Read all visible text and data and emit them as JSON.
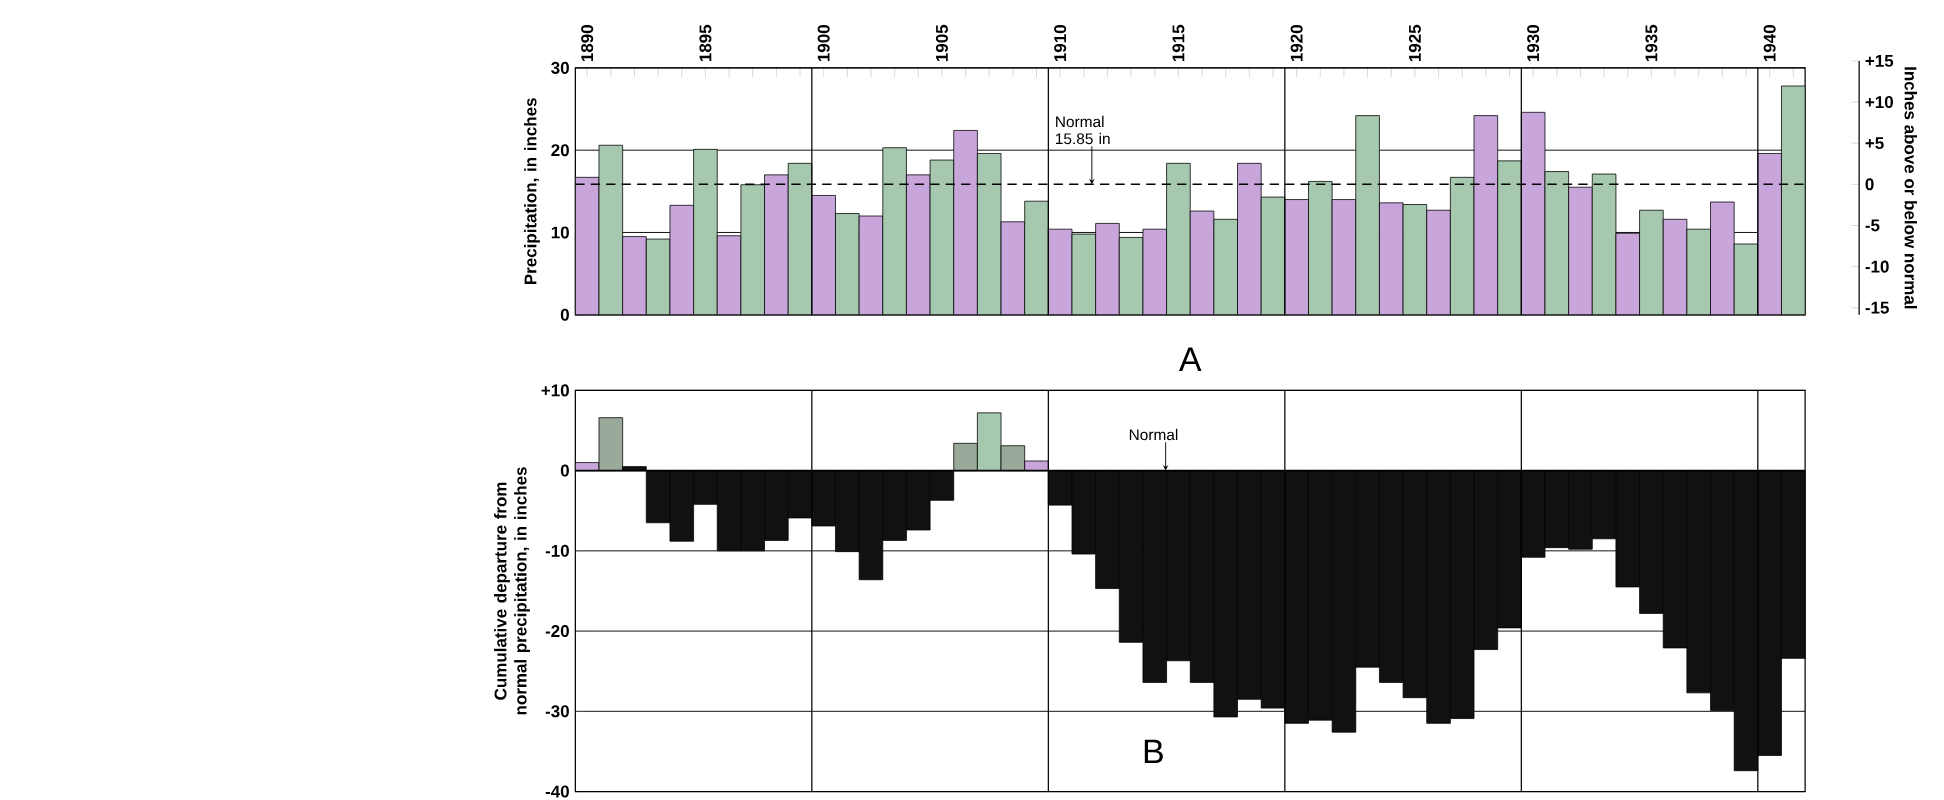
{
  "chart_data": [
    {
      "type": "bar",
      "ylabel": "Precipitation, in inches",
      "y2label": "Inches above or below normal",
      "annotations": [
        "A"
      ],
      "x": [
        1890,
        1891,
        1892,
        1893,
        1894,
        1895,
        1896,
        1897,
        1898,
        1899,
        1900,
        1901,
        1902,
        1903,
        1904,
        1905,
        1906,
        1907,
        1908,
        1909,
        1910,
        1911,
        1912,
        1913,
        1914,
        1915,
        1916,
        1917,
        1918,
        1919,
        1920,
        1921,
        1922,
        1923,
        1924,
        1925,
        1926,
        1927,
        1928,
        1929,
        1930,
        1931,
        1932,
        1933,
        1934,
        1935,
        1936,
        1937,
        1938,
        1939,
        1940,
        1941
      ],
      "values": [
        16.7,
        20.6,
        9.5,
        9.2,
        13.3,
        20.1,
        9.6,
        15.8,
        17.0,
        18.4,
        14.5,
        12.3,
        12.0,
        20.3,
        17.0,
        18.8,
        22.4,
        19.6,
        11.3,
        13.8,
        10.4,
        9.8,
        11.1,
        9.4,
        10.4,
        18.4,
        12.6,
        11.6,
        18.4,
        14.3,
        14.0,
        16.2,
        14.0,
        24.2,
        13.6,
        13.4,
        12.7,
        16.7,
        24.2,
        18.7,
        24.6,
        17.4,
        15.5,
        17.1,
        9.9,
        12.7,
        11.6,
        10.4,
        13.7,
        8.6,
        19.6,
        27.8
      ],
      "colors": [
        "#c8a6dc",
        "#a6c8ae",
        "#c8a6dc",
        "#a6c8ae",
        "#c8a6dc",
        "#a6c8ae",
        "#c8a6dc",
        "#a6c8ae",
        "#c8a6dc",
        "#a6c8ae",
        "#c8a6dc",
        "#a6c8ae",
        "#c8a6dc",
        "#a6c8ae",
        "#c8a6dc",
        "#a6c8ae",
        "#c8a6dc",
        "#a6c8ae",
        "#c8a6dc",
        "#a6c8ae",
        "#c8a6dc",
        "#a6c8ae",
        "#c8a6dc",
        "#a6c8ae",
        "#c8a6dc",
        "#a6c8ae",
        "#c8a6dc",
        "#a6c8ae",
        "#c8a6dc",
        "#a6c8ae",
        "#c8a6dc",
        "#a6c8ae",
        "#c8a6dc",
        "#a6c8ae",
        "#c8a6dc",
        "#a6c8ae",
        "#c8a6dc",
        "#a6c8ae",
        "#c8a6dc",
        "#a6c8ae",
        "#c8a6dc",
        "#a6c8ae",
        "#c8a6dc",
        "#a6c8ae",
        "#c8a6dc",
        "#a6c8ae",
        "#c8a6dc",
        "#a6c8ae",
        "#c8a6dc",
        "#a6c8ae",
        "#c8a6dc",
        "#a6c8ae"
      ],
      "xlim": [
        1889.5,
        1941.5
      ],
      "xticks": [
        1890,
        {
          "value": 1891,
          "label": null
        },
        {
          "value": 1892,
          "label": null
        },
        {
          "value": 1893,
          "label": null
        },
        {
          "value": 1894,
          "label": null
        },
        1895,
        {
          "value": 1896,
          "label": null
        },
        {
          "value": 1897,
          "label": null
        },
        {
          "value": 1898,
          "label": null
        },
        {
          "value": 1899,
          "label": null
        },
        1900,
        {
          "value": 1901,
          "label": null
        },
        {
          "value": 1902,
          "label": null
        },
        {
          "value": 1903,
          "label": null
        },
        {
          "value": 1904,
          "label": null
        },
        1905,
        {
          "value": 1906,
          "label": null
        },
        {
          "value": 1907,
          "label": null
        },
        {
          "value": 1908,
          "label": null
        },
        {
          "value": 1909,
          "label": null
        },
        1910,
        {
          "value": 1911,
          "label": null
        },
        {
          "value": 1912,
          "label": null
        },
        {
          "value": 1913,
          "label": null
        },
        {
          "value": 1914,
          "label": null
        },
        1915,
        {
          "value": 1916,
          "label": null
        },
        {
          "value": 1917,
          "label": null
        },
        {
          "value": 1918,
          "label": null
        },
        {
          "value": 1919,
          "label": null
        },
        1920,
        {
          "value": 1921,
          "label": null
        },
        {
          "value": 1922,
          "label": null
        },
        {
          "value": 1923,
          "label": null
        },
        {
          "value": 1924,
          "label": null
        },
        1925,
        {
          "value": 1926,
          "label": null
        },
        {
          "value": 1927,
          "label": null
        },
        {
          "value": 1928,
          "label": null
        },
        {
          "value": 1929,
          "label": null
        },
        1930,
        {
          "value": 1931,
          "label": null
        },
        {
          "value": 1932,
          "label": null
        },
        {
          "value": 1933,
          "label": null
        },
        {
          "value": 1934,
          "label": null
        },
        1935,
        {
          "value": 1936,
          "label": null
        },
        {
          "value": 1937,
          "label": null
        },
        {
          "value": 1938,
          "label": null
        },
        {
          "value": 1939,
          "label": null
        },
        1940,
        {
          "value": 1941,
          "label": null
        }
      ],
      "ylim": [
        0,
        30
      ],
      "yticks": [
        0,
        10,
        20,
        30
      ],
      "y2lim": [
        -15.85,
        15
      ],
      "y2ticks": [
        {
          "value": 15,
          "label": "+15"
        },
        {
          "value": 10,
          "label": "+10"
        },
        {
          "value": 5,
          "label": "+5"
        },
        0,
        -5,
        -10,
        -15
      ],
      "grid": "y",
      "ref_lines": [
        {
          "axis": "y",
          "value": 15.85,
          "label": "Normal 15.85 in",
          "line_style": "dashed"
        },
        {
          "axis": "x",
          "value": 1899.5
        },
        {
          "axis": "x",
          "value": 1909.5
        },
        {
          "axis": "x",
          "value": 1919.5
        },
        {
          "axis": "x",
          "value": 1929.5
        },
        {
          "axis": "x",
          "value": 1939.5
        }
      ]
    },
    {
      "type": "bar",
      "ylabel": "Cumulative departure from normal precipitation, in inches",
      "annotations": [
        "B"
      ],
      "x": [
        1890,
        1891,
        1892,
        1893,
        1894,
        1895,
        1896,
        1897,
        1898,
        1899,
        1900,
        1901,
        1902,
        1903,
        1904,
        1905,
        1906,
        1907,
        1908,
        1909,
        1910,
        1911,
        1912,
        1913,
        1914,
        1915,
        1916,
        1917,
        1918,
        1919,
        1920,
        1921,
        1922,
        1923,
        1924,
        1925,
        1926,
        1927,
        1928,
        1929,
        1930,
        1931,
        1932,
        1933,
        1934,
        1935,
        1936,
        1937,
        1938,
        1939,
        1940,
        1941
      ],
      "values": [
        1.0,
        6.6,
        0.5,
        -6.5,
        -8.8,
        -4.2,
        -10.0,
        -10.0,
        -8.7,
        -5.9,
        -6.9,
        -10.1,
        -13.6,
        -8.7,
        -7.4,
        -3.7,
        3.4,
        7.2,
        3.1,
        1.2,
        -4.3,
        -10.4,
        -14.7,
        -21.4,
        -26.4,
        -23.7,
        -26.4,
        -30.7,
        -28.5,
        -29.6,
        -31.5,
        -31.1,
        -32.6,
        -24.5,
        -26.4,
        -28.3,
        -31.5,
        -30.9,
        -22.3,
        -19.6,
        -10.8,
        -9.6,
        -9.8,
        -8.5,
        -14.5,
        -17.8,
        -22.1,
        -27.7,
        -29.9,
        -37.4,
        -35.5,
        -23.4
      ],
      "colors": [
        "#c8a6dc",
        "#9aaa9a",
        "#111111",
        "#111111",
        "#111111",
        "#111111",
        "#111111",
        "#111111",
        "#111111",
        "#111111",
        "#111111",
        "#111111",
        "#111111",
        "#111111",
        "#111111",
        "#111111",
        "#9aaa9a",
        "#a6c8ae",
        "#9aaa9a",
        "#c8a6dc",
        "#111111",
        "#111111",
        "#111111",
        "#111111",
        "#111111",
        "#111111",
        "#111111",
        "#111111",
        "#111111",
        "#111111",
        "#111111",
        "#111111",
        "#111111",
        "#111111",
        "#111111",
        "#111111",
        "#111111",
        "#111111",
        "#111111",
        "#111111",
        "#111111",
        "#111111",
        "#111111",
        "#111111",
        "#111111",
        "#111111",
        "#111111",
        "#111111",
        "#111111",
        "#111111",
        "#111111",
        "#111111"
      ],
      "xlim": [
        1889.5,
        1941.5
      ],
      "ylim": [
        -40,
        10
      ],
      "yticks": [
        {
          "value": 10,
          "label": "+10"
        },
        0,
        -10,
        -20,
        -30,
        -40
      ],
      "tick_labels": "y",
      "grid": "y",
      "ref_lines": [
        {
          "axis": "y",
          "value": 0,
          "label": "Normal"
        },
        {
          "axis": "x",
          "value": 1899.5
        },
        {
          "axis": "x",
          "value": 1909.5
        },
        {
          "axis": "x",
          "value": 1919.5
        },
        {
          "axis": "x",
          "value": 1929.5
        },
        {
          "axis": "x",
          "value": 1939.5
        }
      ]
    }
  ]
}
